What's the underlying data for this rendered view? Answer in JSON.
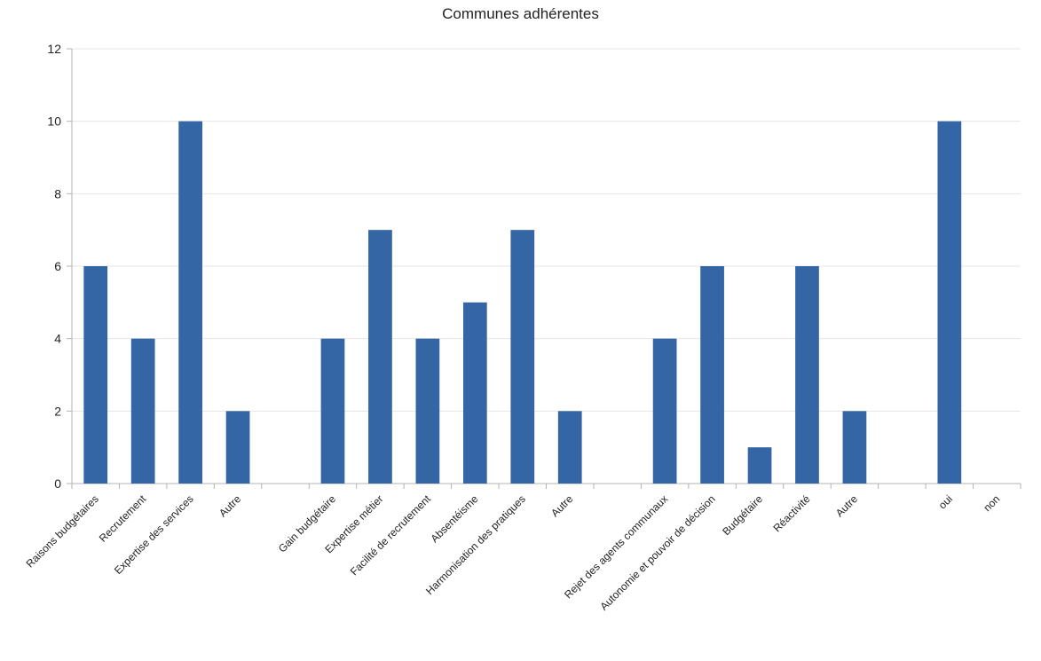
{
  "chart_data": {
    "type": "bar",
    "title": "Communes adhérentes",
    "xlabel": "",
    "ylabel": "",
    "ylim": [
      0,
      12
    ],
    "yticks": [
      0,
      2,
      4,
      6,
      8,
      10,
      12
    ],
    "grid": true,
    "legend": "none",
    "bar_color": "#3465a4",
    "categories": [
      "Raisons budgétaires",
      "Recrutement",
      "Expertise des services",
      "Autre",
      "",
      "Gain budgétaire",
      "Expertise métier",
      "Facilité de recrutement",
      "Absentéisme",
      "Harmonisation des pratiques",
      "Autre",
      "",
      "Rejet des agents communaux",
      "Autonomie et pouvoir de décision",
      "Budgétaire",
      "Réactivité",
      "Autre",
      "",
      "oui",
      "non"
    ],
    "values": [
      6,
      4,
      10,
      2,
      null,
      4,
      7,
      4,
      5,
      7,
      2,
      null,
      4,
      6,
      1,
      6,
      2,
      null,
      10,
      0
    ]
  }
}
